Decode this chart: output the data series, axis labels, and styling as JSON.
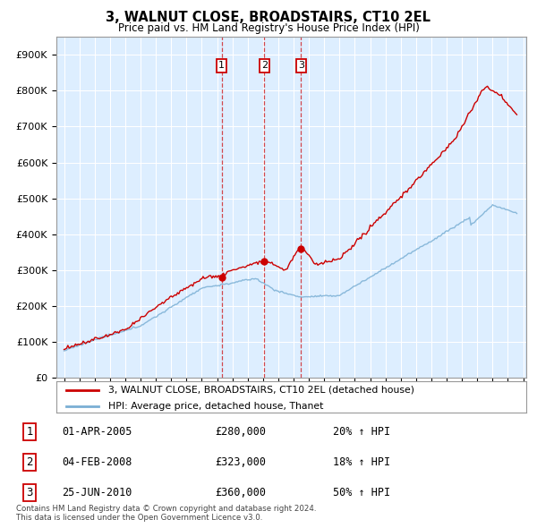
{
  "title": "3, WALNUT CLOSE, BROADSTAIRS, CT10 2EL",
  "subtitle": "Price paid vs. HM Land Registry's House Price Index (HPI)",
  "red_label": "3, WALNUT CLOSE, BROADSTAIRS, CT10 2EL (detached house)",
  "blue_label": "HPI: Average price, detached house, Thanet",
  "sale_points": [
    {
      "num": 1,
      "date_str": "01-APR-2005",
      "price": 280000,
      "hpi_pct": "20% ↑ HPI",
      "x": 2005.3
    },
    {
      "num": 2,
      "date_str": "04-FEB-2008",
      "price": 323000,
      "hpi_pct": "18% ↑ HPI",
      "x": 2008.09
    },
    {
      "num": 3,
      "date_str": "25-JUN-2010",
      "price": 360000,
      "hpi_pct": "50% ↑ HPI",
      "x": 2010.48
    }
  ],
  "footer_line1": "Contains HM Land Registry data © Crown copyright and database right 2024.",
  "footer_line2": "This data is licensed under the Open Government Licence v3.0.",
  "ylim": [
    0,
    950000
  ],
  "yticks": [
    0,
    100000,
    200000,
    300000,
    400000,
    500000,
    600000,
    700000,
    800000,
    900000
  ],
  "xlim": [
    1994.5,
    2025.2
  ],
  "red_color": "#cc0000",
  "blue_color": "#7aafd4",
  "plot_bg_color": "#ddeeff",
  "bg_color": "#ffffff",
  "grid_color": "#ffffff",
  "box_color": "#cc0000"
}
